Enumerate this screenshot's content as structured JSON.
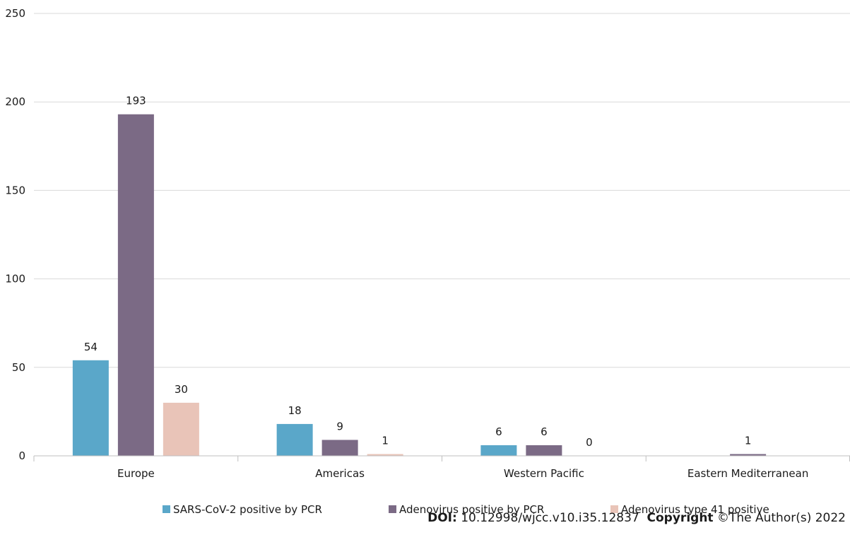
{
  "chart_data": {
    "type": "bar",
    "categories": [
      "Europe",
      "Americas",
      "Western Pacific",
      "Eastern Mediterranean"
    ],
    "series": [
      {
        "name": "SARS-CoV-2 positive by PCR",
        "values": [
          54,
          18,
          6,
          null
        ],
        "color": "#5aa7c9"
      },
      {
        "name": "Adenovirus positive by PCR",
        "values": [
          193,
          9,
          6,
          1
        ],
        "color": "#7b6a85"
      },
      {
        "name": "Adenovirus type 41 positive",
        "values": [
          30,
          1,
          0,
          null
        ],
        "color": "#e9c4b8"
      }
    ],
    "ylim": [
      0,
      250
    ],
    "yticks": [
      0,
      50,
      100,
      150,
      200,
      250
    ],
    "grid": true,
    "legend": "bottom"
  },
  "footer": {
    "doi_label": "DOI:",
    "doi_value": "10.12998/wjcc.v10.i35.12837",
    "copyright_label": "Copyright",
    "copyright_value": "©The Author(s) 2022"
  }
}
